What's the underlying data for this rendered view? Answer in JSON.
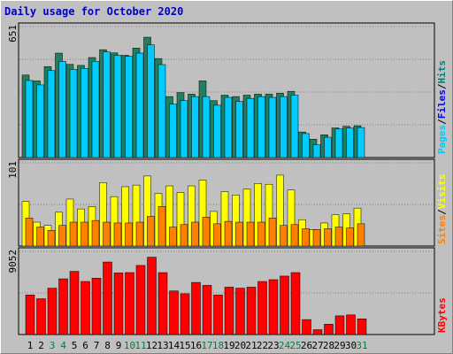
{
  "chart_data": {
    "title": "Daily usage for October 2020",
    "type": "bar",
    "x": [
      "1",
      "2",
      "3",
      "4",
      "5",
      "6",
      "7",
      "8",
      "9",
      "10",
      "11",
      "12",
      "13",
      "14",
      "15",
      "16",
      "17",
      "18",
      "19",
      "20",
      "21",
      "22",
      "23",
      "24",
      "25",
      "26",
      "27",
      "28",
      "29",
      "30",
      "31"
    ],
    "weekend_days": [
      "3",
      "4",
      "10",
      "11",
      "17",
      "18",
      "24",
      "25",
      "31"
    ],
    "colors": {
      "hits": "#008080",
      "files": "#0000ff",
      "pages": "#00ccff",
      "visits": "#ffff00",
      "sites": "#ff8000",
      "kbytes": "#ff0000",
      "hits_bar": "#1f7f5f",
      "files_bar": "#00ccff",
      "weekday_label": "#000000",
      "weekend_label": "#008040"
    },
    "legend": {
      "top": [
        {
          "text": "Pages",
          "color": "#00ccff"
        },
        {
          "text": "/",
          "color": "#000000"
        },
        {
          "text": "Files",
          "color": "#0000ff"
        },
        {
          "text": "/",
          "color": "#000000"
        },
        {
          "text": "Hits",
          "color": "#008080"
        }
      ],
      "middle": [
        {
          "text": "Sites",
          "color": "#ff8000"
        },
        {
          "text": "/",
          "color": "#000000"
        },
        {
          "text": "Visits",
          "color": "#ffff00"
        }
      ],
      "bottom": [
        {
          "text": "KBytes",
          "color": "#ff0000"
        }
      ]
    },
    "panels": [
      {
        "name": "hits-files-pages",
        "ymax_label": "651",
        "ymax": 651,
        "series": [
          {
            "name": "Hits",
            "values": [
              410,
              381,
              452,
              519,
              463,
              458,
              497,
              536,
              520,
              508,
              544,
              598,
              492,
              303,
              323,
              315,
              381,
              283,
              310,
              303,
              310,
              315,
              315,
              320,
              329,
              127,
              91,
              113,
              147,
              155,
              158
            ]
          },
          {
            "name": "Files",
            "values": [
              383,
              361,
              432,
              478,
              438,
              443,
              478,
              525,
              508,
              503,
              519,
              560,
              462,
              265,
              283,
              303,
              303,
              260,
              299,
              279,
              294,
              303,
              299,
              303,
              310,
              119,
              63,
              101,
              142,
              147,
              149
            ]
          },
          {
            "name": "Pages",
            "values": [
              0,
              0,
              0,
              0,
              0,
              0,
              0,
              0,
              0,
              0,
              0,
              0,
              0,
              0,
              0,
              0,
              0,
              0,
              0,
              0,
              0,
              0,
              0,
              0,
              0,
              0,
              0,
              0,
              0,
              0,
              0
            ]
          }
        ]
      },
      {
        "name": "visits-sites",
        "ymax_label": "101",
        "ymax": 101,
        "series": [
          {
            "name": "Visits",
            "values": [
              54,
              29,
              25,
              41,
              57,
              45,
              48,
              77,
              60,
              72,
              74,
              85,
              64,
              73,
              65,
              73,
              80,
              42,
              66,
              62,
              69,
              76,
              75,
              86,
              68,
              32,
              20,
              28,
              38,
              39,
              46
            ]
          },
          {
            "name": "Sites",
            "values": [
              34,
              23,
              19,
              25,
              29,
              29,
              31,
              29,
              28,
              28,
              29,
              36,
              48,
              23,
              26,
              29,
              35,
              27,
              30,
              29,
              29,
              29,
              34,
              25,
              26,
              21,
              20,
              21,
              23,
              22,
              27
            ]
          }
        ]
      },
      {
        "name": "kbytes",
        "ymax_label": "9052",
        "ymax": 9052,
        "series": [
          {
            "name": "KBytes",
            "values": [
              4306,
              3898,
              5045,
              6062,
              6873,
              5775,
              6131,
              7890,
              6703,
              6741,
              7518,
              8416,
              6741,
              4741,
              4439,
              5674,
              5351,
              4306,
              5158,
              5045,
              5158,
              5775,
              5970,
              6361,
              6741,
              1627,
              530,
              1130,
              2033,
              2135,
              1710
            ]
          }
        ]
      }
    ]
  }
}
